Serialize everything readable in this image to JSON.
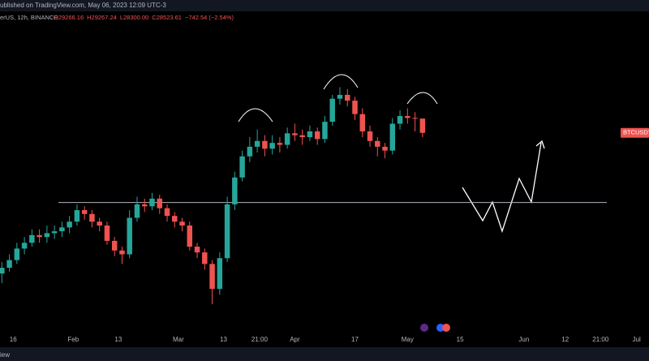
{
  "chart_data": {
    "type": "candlestick",
    "header_top": "ublished on TradingView.com, May 06, 2023 12:09 UTC-3",
    "symbol_info": "erUS, 12h, BINANCE",
    "ohlc_labels": [
      "O29266.16",
      "H29267.24",
      "L28300.00",
      "C28523.61",
      "−742.54 (−2.54%)"
    ],
    "symbol_label": "BTCUSDT",
    "footer": "iew",
    "up_color": "#26a69a",
    "down_color": "#ef5350",
    "x": [
      13,
      15,
      17,
      19,
      21,
      23,
      25,
      27,
      29,
      31,
      33,
      35,
      37,
      39,
      41,
      43,
      45,
      47,
      49,
      51,
      53,
      55,
      57,
      59,
      61,
      63,
      65,
      67,
      69,
      71,
      73,
      75,
      77,
      79,
      81,
      83,
      85,
      87,
      89,
      91,
      93,
      95,
      97,
      99,
      101,
      103,
      105,
      107,
      109,
      111,
      113,
      115,
      117,
      119,
      121,
      123,
      125
    ],
    "open": [
      21200,
      21500,
      21900,
      22500,
      22800,
      23200,
      23100,
      23300,
      23400,
      23600,
      23900,
      24500,
      24300,
      23900,
      23700,
      22900,
      22400,
      22200,
      24100,
      24800,
      24700,
      25100,
      24600,
      24200,
      23900,
      23700,
      22600,
      22300,
      21700,
      20400,
      22000,
      24800,
      26200,
      27300,
      27800,
      28100,
      27700,
      28000,
      27900,
      28500,
      28400,
      28300,
      28600,
      28200,
      29100,
      30300,
      30500,
      30200,
      29500,
      28600,
      28100,
      27800,
      27600,
      29000,
      29400,
      29300,
      29266.16
    ],
    "high": [
      21800,
      22200,
      22800,
      23100,
      23500,
      23500,
      23700,
      23700,
      23900,
      24200,
      24800,
      24700,
      24500,
      24100,
      23900,
      23100,
      22600,
      24500,
      25200,
      25100,
      25400,
      25300,
      24800,
      24400,
      24100,
      23900,
      22800,
      22500,
      21900,
      22300,
      25200,
      26500,
      27600,
      28300,
      28700,
      28400,
      28400,
      28300,
      28800,
      29000,
      28700,
      28900,
      28800,
      29400,
      30500,
      30900,
      30800,
      30400,
      29800,
      28900,
      28300,
      28000,
      29300,
      29700,
      29800,
      29600,
      29267.24
    ],
    "low": [
      20700,
      21300,
      21700,
      22200,
      22600,
      22800,
      22800,
      23000,
      23100,
      23300,
      23700,
      24000,
      23600,
      23400,
      22700,
      22100,
      21700,
      22000,
      23900,
      24400,
      24500,
      24300,
      23900,
      23600,
      23400,
      22400,
      22000,
      21400,
      19600,
      20100,
      21800,
      24500,
      26000,
      27000,
      27500,
      27300,
      27400,
      27500,
      27700,
      28100,
      27900,
      28100,
      27900,
      28000,
      28900,
      30000,
      29900,
      29200,
      28300,
      27800,
      27300,
      27200,
      27400,
      28700,
      29000,
      28600,
      28300
    ],
    "close": [
      21500,
      21900,
      22500,
      22800,
      23200,
      23100,
      23300,
      23400,
      23600,
      23900,
      24500,
      24300,
      23900,
      23700,
      22900,
      22400,
      22200,
      24100,
      24800,
      24700,
      25100,
      24600,
      24200,
      23900,
      23700,
      22600,
      22300,
      21700,
      20400,
      22000,
      24800,
      26200,
      27300,
      27800,
      28100,
      27700,
      28000,
      27900,
      28500,
      28400,
      28300,
      28600,
      28200,
      29100,
      30300,
      30500,
      30200,
      29500,
      28600,
      28100,
      27800,
      27600,
      29000,
      29400,
      29300,
      29266.16,
      28523.61
    ],
    "hline": 24900,
    "xlim": [
      12.5,
      185.3
    ],
    "ylim": [
      18547,
      34806
    ],
    "xticks": [
      16,
      {
        "value": 32,
        "label": "Feb"
      },
      {
        "value": 44,
        "label": "13"
      },
      {
        "value": 60,
        "label": "Mar"
      },
      {
        "value": 72,
        "label": "13"
      },
      {
        "value": 81.6,
        "label": "21:00"
      },
      {
        "value": 91,
        "label": "Apr"
      },
      {
        "value": 107,
        "label": "17"
      },
      {
        "value": 121,
        "label": "May"
      },
      {
        "value": 135,
        "label": "15"
      },
      {
        "value": 152,
        "label": "Jun"
      },
      {
        "value": 163,
        "label": "12"
      },
      {
        "value": 172.4,
        "label": "21:00"
      },
      {
        "value": 182,
        "label": "Jul"
      }
    ]
  }
}
